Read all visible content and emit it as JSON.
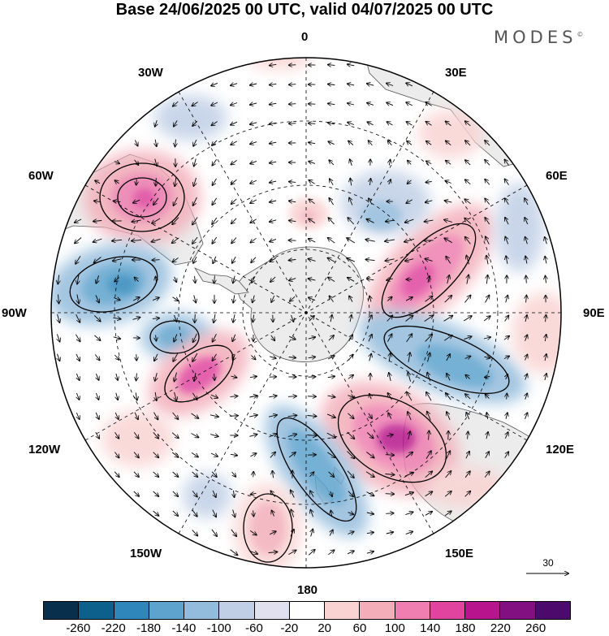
{
  "title": "Base 24/06/2025 00 UTC, valid 04/07/2025 00 UTC",
  "brand": "MODES",
  "brand_mark": "©",
  "longitude_labels": {
    "lon_0": "0",
    "lon_30e": "30E",
    "lon_60e": "60E",
    "lon_90e": "90E",
    "lon_120e": "120E",
    "lon_150e": "150E",
    "lon_180": "180",
    "lon_150w": "150W",
    "lon_120w": "120W",
    "lon_90w": "90W",
    "lon_60w": "60W",
    "lon_30w": "30W"
  },
  "reference_vector_label": "30",
  "colorbar": {
    "ticks": [
      "-260",
      "-220",
      "-180",
      "-140",
      "-100",
      "-60",
      "-20",
      "20",
      "60",
      "100",
      "140",
      "180",
      "220",
      "260"
    ],
    "colors": [
      "#08304d",
      "#0d5f8c",
      "#2e86bb",
      "#5da3cd",
      "#93bbdc",
      "#c0cfe6",
      "#e1e0ee",
      "#ffffff",
      "#f9d3d2",
      "#f3aeb9",
      "#ee7fb0",
      "#e0449f",
      "#b7148d",
      "#821080",
      "#4c0a6c"
    ]
  },
  "anomaly_centers": [
    {
      "sign": "positive",
      "level": 180,
      "region": "60W"
    },
    {
      "sign": "negative",
      "level": -180,
      "region": "75W"
    },
    {
      "sign": "positive",
      "level": 180,
      "region": "60E-75E"
    },
    {
      "sign": "negative",
      "level": -140,
      "region": "100E-110E"
    },
    {
      "sign": "positive",
      "level": 220,
      "region": "135E"
    },
    {
      "sign": "negative",
      "level": -140,
      "region": "165E-180"
    },
    {
      "sign": "positive",
      "level": 140,
      "region": "110W"
    },
    {
      "sign": "negative",
      "level": -100,
      "region": "100W"
    },
    {
      "sign": "positive",
      "level": 60,
      "region": "160W-175W"
    },
    {
      "sign": "positive",
      "level": 60,
      "region": "5E"
    }
  ]
}
